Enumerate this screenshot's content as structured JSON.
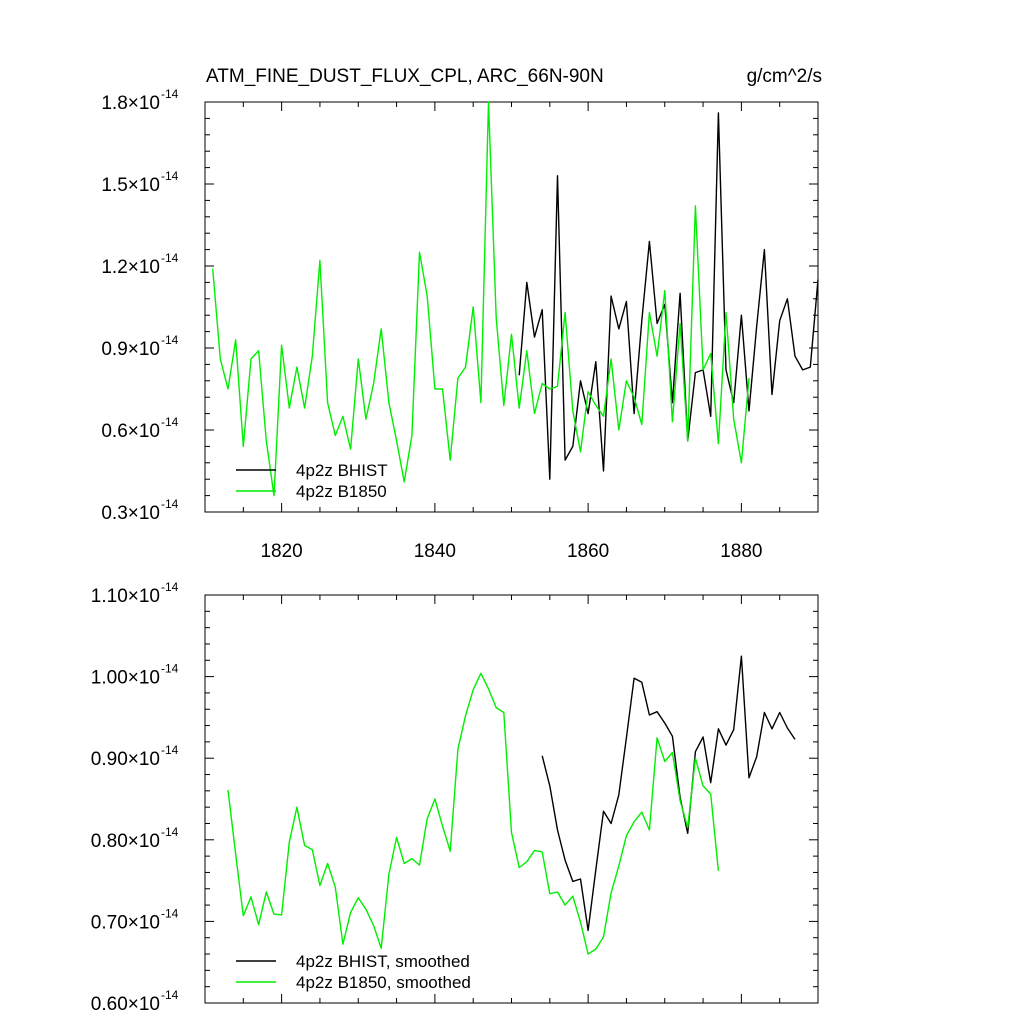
{
  "chart_data": [
    {
      "type": "line",
      "title": "ATM_FINE_DUST_FLUX_CPL, ARC_66N-90N",
      "units": "g/cm^2/s",
      "xlabel": "",
      "ylabel": "",
      "xlim": [
        1810,
        1890
      ],
      "ylim": [
        3e-15,
        1.8e-14
      ],
      "xticks": [
        1820,
        1840,
        1860,
        1880
      ],
      "xtick_labels": [
        "1820",
        "1840",
        "1860",
        "1880"
      ],
      "yticks": [
        3e-15,
        6e-15,
        9e-15,
        1.2e-14,
        1.5e-14,
        1.8e-14
      ],
      "ytick_labels": [
        {
          "mantissa": "0.3",
          "exp": "-14"
        },
        {
          "mantissa": "0.6",
          "exp": "-14"
        },
        {
          "mantissa": "0.9",
          "exp": "-14"
        },
        {
          "mantissa": "1.2",
          "exp": "-14"
        },
        {
          "mantissa": "1.5",
          "exp": "-14"
        },
        {
          "mantissa": "1.8",
          "exp": "-14"
        }
      ],
      "times_sign": "×10",
      "legend_position": "bottom-left",
      "series": [
        {
          "name": "4p2z BHIST",
          "color": "#000000",
          "x0": 1851,
          "step": 1,
          "values": [
            0.8,
            1.14,
            0.94,
            1.04,
            0.42,
            1.53,
            0.49,
            0.54,
            0.78,
            0.66,
            0.85,
            0.45,
            1.09,
            0.97,
            1.07,
            0.66,
            1.0,
            1.29,
            0.99,
            1.06,
            0.7,
            1.1,
            0.56,
            0.81,
            0.82,
            0.65,
            1.76,
            0.82,
            0.7,
            1.02,
            0.67,
            0.98,
            1.26,
            0.73,
            1.0,
            1.08,
            0.87,
            0.82,
            0.83,
            1.15
          ]
        },
        {
          "name": "4p2z B1850",
          "color": "#00ee00",
          "x0": 1811,
          "step": 1,
          "values": [
            1.19,
            0.86,
            0.75,
            0.93,
            0.54,
            0.86,
            0.89,
            0.56,
            0.36,
            0.91,
            0.68,
            0.83,
            0.68,
            0.87,
            1.22,
            0.7,
            0.58,
            0.65,
            0.53,
            0.86,
            0.64,
            0.77,
            0.97,
            0.7,
            0.56,
            0.41,
            0.58,
            1.25,
            1.09,
            0.75,
            0.75,
            0.49,
            0.79,
            0.83,
            1.05,
            0.7,
            1.8,
            1.01,
            0.69,
            0.95,
            0.68,
            0.89,
            0.66,
            0.77,
            0.75,
            0.76,
            1.03,
            0.67,
            0.52,
            0.74,
            0.69,
            0.65,
            0.86,
            0.6,
            0.78,
            0.72,
            0.62,
            1.03,
            0.87,
            1.11,
            0.63,
            0.99,
            0.56,
            1.42,
            0.82,
            0.88,
            0.55,
            1.03,
            0.64,
            0.48,
            0.79
          ]
        }
      ]
    },
    {
      "type": "line",
      "title": "",
      "xlabel": "",
      "ylabel": "",
      "xlim": [
        1810,
        1890
      ],
      "ylim": [
        6e-15,
        1.1e-14
      ],
      "xticks": [
        1820,
        1840,
        1860,
        1880
      ],
      "xtick_labels": [],
      "yticks": [
        6e-15,
        7e-15,
        8e-15,
        9e-15,
        1e-14,
        1.1e-14
      ],
      "ytick_labels": [
        {
          "mantissa": "0.60",
          "exp": "-14"
        },
        {
          "mantissa": "0.70",
          "exp": "-14"
        },
        {
          "mantissa": "0.80",
          "exp": "-14"
        },
        {
          "mantissa": "0.90",
          "exp": "-14"
        },
        {
          "mantissa": "1.00",
          "exp": "-14"
        },
        {
          "mantissa": "1.10",
          "exp": "-14"
        }
      ],
      "times_sign": "×10",
      "legend_position": "bottom-left",
      "series": [
        {
          "name": "4p2z BHIST, smoothed",
          "color": "#000000",
          "x0": 1854,
          "step": 1,
          "values": [
            0.903,
            0.866,
            0.812,
            0.775,
            0.749,
            0.752,
            0.689,
            0.763,
            0.835,
            0.82,
            0.855,
            0.925,
            0.998,
            0.993,
            0.953,
            0.957,
            0.943,
            0.927,
            0.852,
            0.808,
            0.908,
            0.926,
            0.87,
            0.936,
            0.916,
            0.935,
            1.025,
            0.876,
            0.902,
            0.956,
            0.936,
            0.956,
            0.937,
            0.923
          ]
        },
        {
          "name": "4p2z B1850, smoothed",
          "color": "#00ee00",
          "x0": 1813,
          "step": 1,
          "values": [
            0.861,
            0.782,
            0.707,
            0.73,
            0.696,
            0.736,
            0.709,
            0.708,
            0.797,
            0.84,
            0.793,
            0.788,
            0.744,
            0.771,
            0.742,
            0.672,
            0.711,
            0.729,
            0.715,
            0.695,
            0.667,
            0.758,
            0.803,
            0.771,
            0.777,
            0.769,
            0.826,
            0.85,
            0.817,
            0.786,
            0.911,
            0.952,
            0.984,
            1.004,
            0.985,
            0.962,
            0.956,
            0.809,
            0.766,
            0.773,
            0.787,
            0.785,
            0.734,
            0.736,
            0.72,
            0.731,
            0.699,
            0.66,
            0.666,
            0.681,
            0.735,
            0.768,
            0.805,
            0.822,
            0.834,
            0.812,
            0.925,
            0.896,
            0.907,
            0.848,
            0.815,
            0.9,
            0.866,
            0.856,
            0.762
          ]
        }
      ]
    }
  ]
}
